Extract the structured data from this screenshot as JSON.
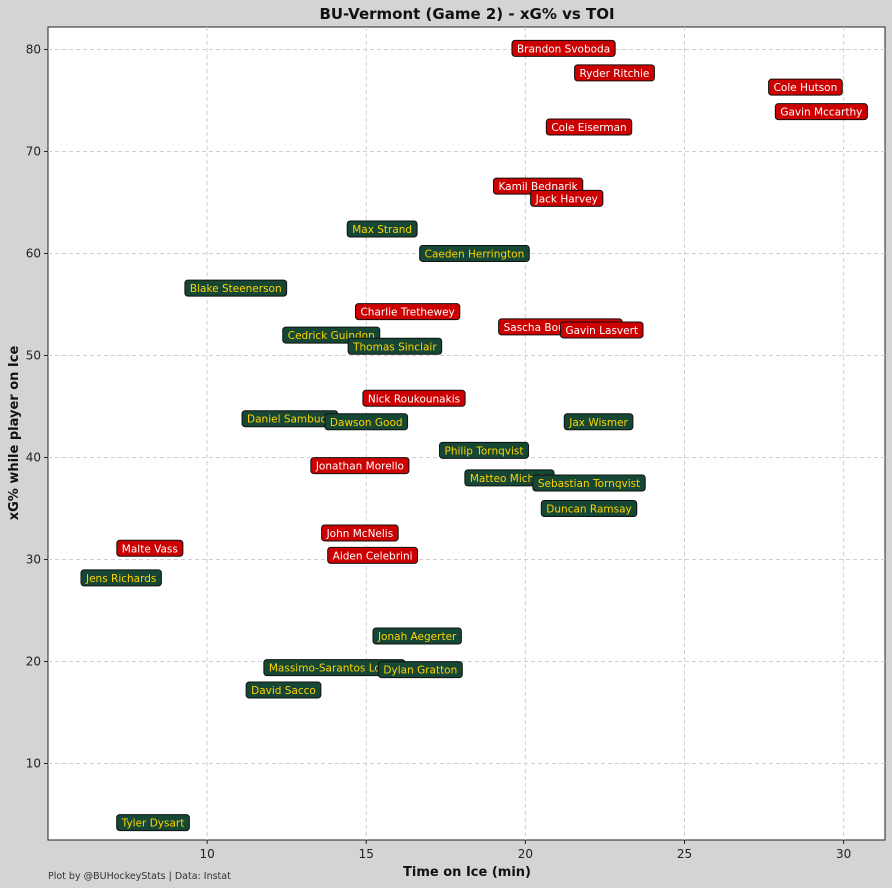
{
  "caption": "Plot by @BUHockeyStats | Data: Instat",
  "chart_data": {
    "type": "scatter",
    "title": "BU-Vermont (Game 2) - xG% vs TOI",
    "xlabel": "Time on Ice (min)",
    "ylabel": "xG% while player on Ice",
    "xlim": [
      5.0,
      31.3
    ],
    "ylim": [
      2.5,
      82.2
    ],
    "xticks": [
      10,
      15,
      20,
      25,
      30
    ],
    "yticks": [
      10,
      20,
      30,
      40,
      50,
      60,
      70,
      80
    ],
    "grid": true,
    "colors": {
      "bu_fill": "#cc0000",
      "bu_text": "#ffffff",
      "vermont_fill": "#154734",
      "vermont_text": "#ffd400",
      "background": "#d4d4d4",
      "panel": "#ffffff",
      "grid": "#d0d0d0"
    },
    "series": [
      {
        "team": "bu",
        "points": [
          {
            "player": "Brandon Svoboda",
            "x": 21.2,
            "y": 80.1
          },
          {
            "player": "Ryder Ritchie",
            "x": 22.8,
            "y": 77.7
          },
          {
            "player": "Cole Hutson",
            "x": 28.8,
            "y": 76.3
          },
          {
            "player": "Gavin Mccarthy",
            "x": 29.3,
            "y": 73.9
          },
          {
            "player": "Cole Eiserman",
            "x": 22.0,
            "y": 72.4
          },
          {
            "player": "Kamil Bednarik",
            "x": 20.4,
            "y": 66.6
          },
          {
            "player": "Jack Harvey",
            "x": 21.3,
            "y": 65.4
          },
          {
            "player": "Charlie Trethewey",
            "x": 16.3,
            "y": 54.3
          },
          {
            "player": "Sascha Boumedienne",
            "x": 21.1,
            "y": 52.8
          },
          {
            "player": "Gavin Lasvert",
            "x": 22.4,
            "y": 52.5
          },
          {
            "player": "Nick Roukounakis",
            "x": 16.5,
            "y": 45.8
          },
          {
            "player": "Jonathan Morello",
            "x": 14.8,
            "y": 39.2
          },
          {
            "player": "Malte Vass",
            "x": 8.2,
            "y": 31.1
          },
          {
            "player": "John McNelis",
            "x": 14.8,
            "y": 32.6
          },
          {
            "player": "Aiden Celebrini",
            "x": 15.2,
            "y": 30.4
          }
        ]
      },
      {
        "team": "vermont",
        "points": [
          {
            "player": "Max Strand",
            "x": 15.5,
            "y": 62.4
          },
          {
            "player": "Caeden Herrington",
            "x": 18.4,
            "y": 60.0
          },
          {
            "player": "Blake Steenerson",
            "x": 10.9,
            "y": 56.6
          },
          {
            "player": "Cedrick Guindon",
            "x": 13.9,
            "y": 52.0
          },
          {
            "player": "Thomas Sinclair",
            "x": 15.9,
            "y": 50.9
          },
          {
            "player": "Daniel Sambuco",
            "x": 12.6,
            "y": 43.8
          },
          {
            "player": "Dawson Good",
            "x": 15.0,
            "y": 43.5
          },
          {
            "player": "Jax Wismer",
            "x": 22.3,
            "y": 43.5
          },
          {
            "player": "Philip Tornqvist",
            "x": 18.7,
            "y": 40.7
          },
          {
            "player": "Matteo Michels",
            "x": 19.5,
            "y": 38.0
          },
          {
            "player": "Sebastian Tornqvist",
            "x": 22.0,
            "y": 37.5
          },
          {
            "player": "Duncan Ramsay",
            "x": 22.0,
            "y": 35.0
          },
          {
            "player": "Jens Richards",
            "x": 7.3,
            "y": 28.2
          },
          {
            "player": "Jonah Aegerter",
            "x": 16.6,
            "y": 22.5
          },
          {
            "player": "Massimo-Sarantos Lontis",
            "x": 14.0,
            "y": 19.4
          },
          {
            "player": "Dylan Gratton",
            "x": 16.7,
            "y": 19.2
          },
          {
            "player": "David Sacco",
            "x": 12.4,
            "y": 17.2
          },
          {
            "player": "Tyler Dysart",
            "x": 8.3,
            "y": 4.2
          }
        ]
      }
    ]
  }
}
